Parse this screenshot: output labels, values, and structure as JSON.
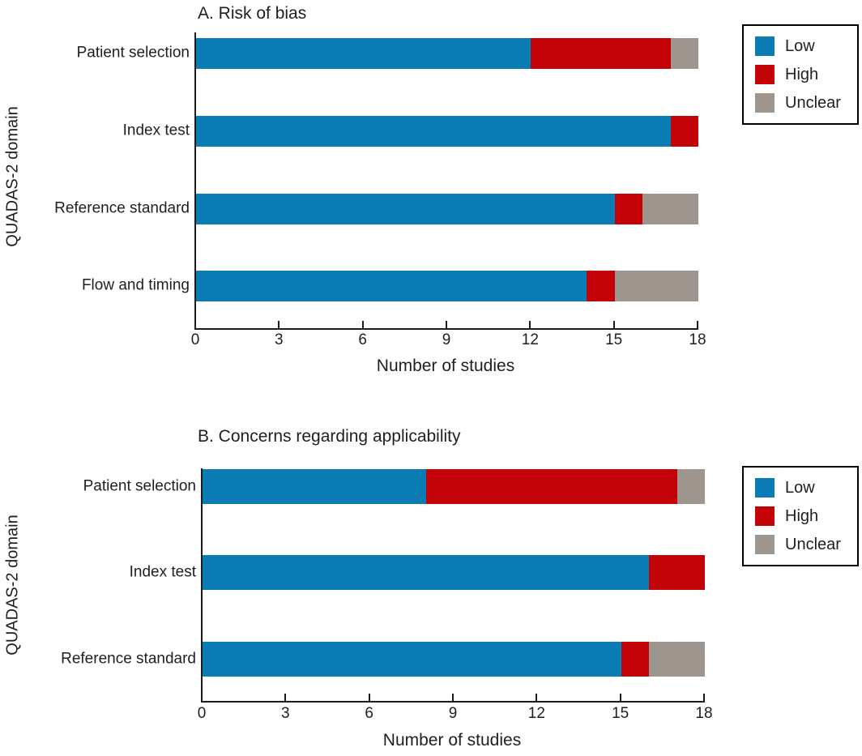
{
  "figure": {
    "background": "#ffffff"
  },
  "colors": {
    "low": "#0b7cb3",
    "high": "#c40309",
    "unclear": "#9e958e",
    "axis": "#1c1c1c",
    "text": "#1f1f1f"
  },
  "chart_data": [
    {
      "type": "bar",
      "orientation": "horizontal",
      "stacked": true,
      "title": "A. Risk of bias",
      "ylabel": "QUADAS-2 domain",
      "xlabel": "Number of studies",
      "xlim": [
        0,
        18
      ],
      "xticks": [
        0,
        3,
        6,
        9,
        12,
        15,
        18
      ],
      "grid": false,
      "categories": [
        "Patient selection",
        "Index test",
        "Reference standard",
        "Flow and timing"
      ],
      "series": [
        {
          "name": "Low",
          "color": "#0b7cb3",
          "values": [
            12,
            17,
            15,
            14
          ]
        },
        {
          "name": "High",
          "color": "#c40309",
          "values": [
            5,
            1,
            1,
            1
          ]
        },
        {
          "name": "Unclear",
          "color": "#9e958e",
          "values": [
            1,
            0,
            2,
            3
          ]
        }
      ],
      "legend_entries": [
        "Low",
        "High",
        "Unclear"
      ],
      "legend_position": "outside-top-right"
    },
    {
      "type": "bar",
      "orientation": "horizontal",
      "stacked": true,
      "title": "B. Concerns regarding applicability",
      "ylabel": "QUADAS-2 domain",
      "xlabel": "Number of studies",
      "xlim": [
        0,
        18
      ],
      "xticks": [
        0,
        3,
        6,
        9,
        12,
        15,
        18
      ],
      "grid": false,
      "categories": [
        "Patient selection",
        "Index test",
        "Reference standard"
      ],
      "series": [
        {
          "name": "Low",
          "color": "#0b7cb3",
          "values": [
            8,
            16,
            15
          ]
        },
        {
          "name": "High",
          "color": "#c40309",
          "values": [
            9,
            2,
            1
          ]
        },
        {
          "name": "Unclear",
          "color": "#9e958e",
          "values": [
            1,
            0,
            2
          ]
        }
      ],
      "legend_entries": [
        "Low",
        "High",
        "Unclear"
      ],
      "legend_position": "outside-top-right"
    }
  ]
}
